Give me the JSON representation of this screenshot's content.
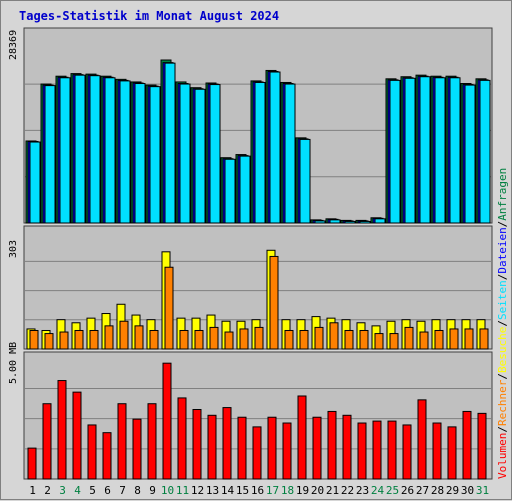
{
  "chart_data": {
    "type": "bar",
    "title": "Tages-Statistik im Monat August 2024",
    "categories": [
      "1",
      "2",
      "3",
      "4",
      "5",
      "6",
      "7",
      "8",
      "9",
      "10",
      "11",
      "12",
      "13",
      "14",
      "15",
      "16",
      "17",
      "18",
      "19",
      "20",
      "21",
      "22",
      "23",
      "24",
      "25",
      "26",
      "27",
      "28",
      "29",
      "30",
      "31"
    ],
    "weekend_days": [
      "3",
      "4",
      "10",
      "11",
      "17",
      "18",
      "24",
      "25",
      "31"
    ],
    "panels": [
      {
        "id": "top",
        "scale_label": "28369",
        "ymax": 28369,
        "series": [
          {
            "name": "Anfragen",
            "color": "#008040",
            "values": [
              15700,
              26600,
              28100,
              28600,
              28500,
              28100,
              27500,
              27000,
              26400,
              31200,
              27000,
              25900,
              26800,
              12500,
              13100,
              27200,
              29200,
              26900,
              16300,
              600,
              800,
              500,
              500,
              1000,
              27600,
              28000,
              28300,
              28100,
              28100,
              26700,
              27600
            ]
          },
          {
            "name": "Dateien",
            "color": "#0000ff",
            "values": [
              15600,
              26400,
              27900,
              28400,
              28300,
              27900,
              27300,
              26800,
              26200,
              30700,
              26700,
              25700,
              26600,
              12300,
              12900,
              27000,
              29000,
              26700,
              16100,
              500,
              700,
              400,
              400,
              900,
              27400,
              27800,
              28100,
              27900,
              27900,
              26500,
              27400
            ]
          },
          {
            "name": "Seiten",
            "color": "#00e0ff",
            "values": [
              15500,
              26300,
              27800,
              28300,
              28200,
              27800,
              27200,
              26700,
              26100,
              30600,
              26600,
              25600,
              26500,
              12200,
              12800,
              26900,
              28900,
              26600,
              16000,
              400,
              600,
              300,
              300,
              800,
              27300,
              27700,
              28000,
              27800,
              27800,
              26400,
              27300
            ]
          }
        ]
      },
      {
        "id": "middle",
        "scale_label": "303",
        "ymax": 303,
        "series": [
          {
            "name": "Besuche",
            "color": "#ffff00",
            "values": [
              65,
              60,
              95,
              85,
              100,
              115,
              145,
              110,
              95,
              315,
              100,
              100,
              110,
              90,
              90,
              95,
              320,
              95,
              95,
              105,
              100,
              95,
              85,
              75,
              90,
              95,
              90,
              95,
              95,
              95,
              95
            ]
          },
          {
            "name": "Rechner",
            "color": "#ff8000",
            "values": [
              60,
              50,
              55,
              60,
              60,
              75,
              90,
              75,
              60,
              265,
              60,
              60,
              70,
              55,
              65,
              70,
              300,
              60,
              60,
              70,
              85,
              60,
              60,
              50,
              50,
              70,
              55,
              60,
              65,
              65,
              65
            ]
          }
        ]
      },
      {
        "id": "bottom",
        "scale_label": "5.00 MB",
        "ymax": 5.0,
        "series": [
          {
            "name": "Volumen",
            "color": "#ff0000",
            "values": [
              1.6,
              3.9,
              5.1,
              4.5,
              2.8,
              2.4,
              3.9,
              3.1,
              3.9,
              6.0,
              4.2,
              3.6,
              3.3,
              3.7,
              3.2,
              2.7,
              3.2,
              2.9,
              4.3,
              3.2,
              3.5,
              3.3,
              2.9,
              3.0,
              3.0,
              2.8,
              4.1,
              2.9,
              2.7,
              3.5,
              3.4
            ]
          }
        ]
      }
    ],
    "legend": [
      "Volumen",
      "/",
      "Rechner",
      "/",
      "Besuche",
      "/",
      "Seiten",
      "/",
      "Dateien",
      "/",
      "Anfragen"
    ],
    "legend_placement": "right (vertical)"
  }
}
